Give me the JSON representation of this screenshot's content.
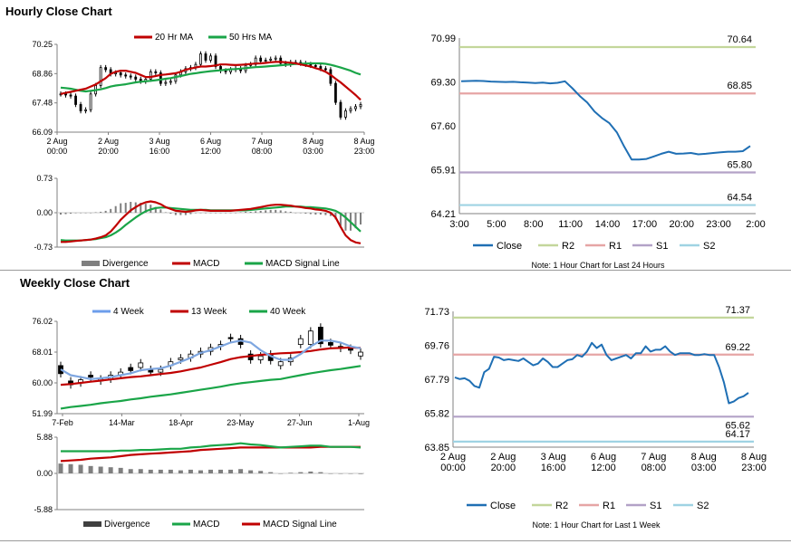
{
  "colors": {
    "red": "#c00000",
    "green": "#1aa548",
    "blue": "#2e75b6",
    "r2": "#c3d69b",
    "r1": "#e6a5a5",
    "s1": "#b3a2c7",
    "s2": "#9fd3e3",
    "close": "#1f6fb4",
    "grey": "#7f7f7f"
  },
  "titles": {
    "hourly": "Hourly Close Chart",
    "weekly": "Weekly Close Chart"
  },
  "notes": {
    "hourly": "Note: 1 Hour Chart for Last 24 Hours",
    "weekly": "Note: 1 Hour Chart for Last 1 Week"
  },
  "chart_data": [
    {
      "id": "hourly_price",
      "type": "candlestick",
      "title": "Hourly Close Chart",
      "legend": [
        "20 Hr MA",
        "50 Hrs MA"
      ],
      "y_ticks": [
        "70.25",
        "68.86",
        "67.48",
        "66.09"
      ],
      "ylim": [
        66.09,
        70.25
      ],
      "x_labels": [
        [
          "2 Aug",
          "00:00"
        ],
        [
          "2 Aug",
          "20:00"
        ],
        [
          "3 Aug",
          "16:00"
        ],
        [
          "6 Aug",
          "12:00"
        ],
        [
          "7 Aug",
          "08:00"
        ],
        [
          "8 Aug",
          "03:00"
        ],
        [
          "8 Aug",
          "23:00"
        ]
      ],
      "close": [
        67.9,
        67.85,
        67.8,
        67.4,
        67.1,
        67.15,
        67.9,
        68.3,
        69.15,
        69.05,
        68.85,
        68.9,
        68.8,
        68.75,
        68.7,
        68.6,
        68.5,
        68.6,
        68.95,
        68.9,
        68.4,
        68.45,
        68.5,
        68.8,
        68.95,
        69.1,
        69.15,
        69.3,
        69.8,
        69.5,
        69.7,
        69.2,
        69.0,
        68.95,
        69.05,
        69.1,
        69.0,
        69.25,
        69.3,
        69.6,
        69.45,
        69.5,
        69.55,
        69.6,
        69.35,
        69.3,
        69.4,
        69.4,
        69.35,
        69.3,
        69.25,
        69.2,
        69.1,
        69.05,
        68.4,
        67.5,
        66.8,
        67.1,
        67.2,
        67.3,
        67.4
      ],
      "ma20": [
        67.9,
        67.95,
        68.0,
        68.05,
        68.1,
        68.15,
        68.25,
        68.35,
        68.5,
        68.65,
        68.85,
        68.95,
        69.0,
        69.0,
        68.95,
        68.9,
        68.8,
        68.7,
        68.7,
        68.75,
        68.8,
        68.82,
        68.85,
        68.88,
        68.95,
        69.05,
        69.1,
        69.15,
        69.2,
        69.2,
        69.22,
        69.25,
        69.3,
        69.3,
        69.28,
        69.27,
        69.28,
        69.3,
        69.32,
        69.34,
        69.35,
        69.37,
        69.4,
        69.42,
        69.42,
        69.4,
        69.38,
        69.35,
        69.3,
        69.25,
        69.2,
        69.12,
        69.05,
        68.95,
        68.8,
        68.62,
        68.45,
        68.25,
        68.05,
        67.85,
        67.62
      ],
      "ma50": [
        68.2,
        68.18,
        68.15,
        68.1,
        68.05,
        68.02,
        68.05,
        68.08,
        68.12,
        68.18,
        68.25,
        68.3,
        68.33,
        68.36,
        68.4,
        68.45,
        68.48,
        68.5,
        68.52,
        68.55,
        68.58,
        68.62,
        68.65,
        68.7,
        68.75,
        68.8,
        68.85,
        68.88,
        68.92,
        68.95,
        68.98,
        69.0,
        69.02,
        69.05,
        69.07,
        69.08,
        69.1,
        69.12,
        69.15,
        69.17,
        69.18,
        69.2,
        69.22,
        69.24,
        69.26,
        69.28,
        69.3,
        69.32,
        69.33,
        69.34,
        69.35,
        69.35,
        69.35,
        69.33,
        69.28,
        69.22,
        69.15,
        69.08,
        69.0,
        68.9,
        68.82
      ]
    },
    {
      "id": "hourly_macd",
      "type": "macd",
      "legend": [
        "Divergence",
        "MACD",
        "MACD Signal Line"
      ],
      "y_ticks": [
        "0.73",
        "0.00",
        "-0.73"
      ],
      "ylim": [
        -0.73,
        0.73
      ],
      "macd": [
        -0.62,
        -0.62,
        -0.61,
        -0.6,
        -0.59,
        -0.58,
        -0.57,
        -0.55,
        -0.52,
        -0.48,
        -0.4,
        -0.28,
        -0.15,
        -0.05,
        0.05,
        0.12,
        0.18,
        0.22,
        0.24,
        0.22,
        0.18,
        0.12,
        0.08,
        0.04,
        0.03,
        0.02,
        0.03,
        0.05,
        0.06,
        0.05,
        0.04,
        0.04,
        0.04,
        0.04,
        0.04,
        0.05,
        0.06,
        0.07,
        0.08,
        0.1,
        0.12,
        0.14,
        0.16,
        0.17,
        0.17,
        0.16,
        0.15,
        0.13,
        0.12,
        0.1,
        0.09,
        0.07,
        0.06,
        0.04,
        0.0,
        -0.1,
        -0.3,
        -0.48,
        -0.58,
        -0.63,
        -0.65
      ],
      "signal": [
        -0.58,
        -0.59,
        -0.59,
        -0.59,
        -0.59,
        -0.58,
        -0.57,
        -0.56,
        -0.54,
        -0.52,
        -0.48,
        -0.42,
        -0.35,
        -0.26,
        -0.18,
        -0.1,
        -0.03,
        0.03,
        0.07,
        0.1,
        0.11,
        0.11,
        0.1,
        0.09,
        0.08,
        0.07,
        0.06,
        0.06,
        0.06,
        0.06,
        0.05,
        0.05,
        0.05,
        0.05,
        0.05,
        0.05,
        0.05,
        0.05,
        0.06,
        0.07,
        0.08,
        0.09,
        0.1,
        0.11,
        0.12,
        0.13,
        0.13,
        0.13,
        0.13,
        0.12,
        0.12,
        0.11,
        0.1,
        0.09,
        0.07,
        0.04,
        -0.02,
        -0.1,
        -0.2,
        -0.3,
        -0.4
      ],
      "divergence": [
        -0.04,
        -0.03,
        -0.02,
        -0.01,
        0.0,
        0.0,
        0.0,
        0.01,
        0.02,
        0.04,
        0.08,
        0.14,
        0.2,
        0.21,
        0.23,
        0.22,
        0.21,
        0.19,
        0.17,
        0.12,
        0.07,
        0.01,
        -0.02,
        -0.05,
        -0.05,
        -0.05,
        -0.03,
        -0.01,
        0.0,
        -0.01,
        -0.01,
        -0.01,
        -0.01,
        -0.01,
        -0.01,
        0.0,
        0.01,
        0.02,
        0.02,
        0.03,
        0.04,
        0.05,
        0.06,
        0.06,
        0.05,
        0.03,
        0.02,
        0.0,
        -0.01,
        -0.02,
        -0.03,
        -0.04,
        -0.04,
        -0.05,
        -0.07,
        -0.14,
        -0.28,
        -0.38,
        -0.38,
        -0.33,
        -0.25
      ]
    },
    {
      "id": "hourly_levels",
      "type": "line",
      "legend": [
        "Close",
        "R2",
        "R1",
        "S1",
        "S2"
      ],
      "y_ticks": [
        "70.99",
        "69.30",
        "67.60",
        "65.91",
        "64.21"
      ],
      "ylim": [
        64.21,
        70.99
      ],
      "x_labels": [
        "3:00",
        "5:00",
        "8:00",
        "11:00",
        "14:00",
        "17:00",
        "20:00",
        "23:00",
        "2:00"
      ],
      "levels": {
        "R2": 70.64,
        "R1": 68.85,
        "S1": 65.8,
        "S2": 64.54
      },
      "level_labels": {
        "R2": "70.64",
        "R1": "68.85",
        "S1": "65.80",
        "S2": "64.54"
      },
      "close": [
        69.32,
        69.33,
        69.34,
        69.33,
        69.31,
        69.3,
        69.29,
        69.3,
        69.28,
        69.27,
        69.25,
        69.27,
        69.24,
        69.26,
        69.32,
        69.05,
        68.75,
        68.5,
        68.15,
        67.9,
        67.7,
        67.35,
        66.8,
        66.3,
        66.3,
        66.32,
        66.42,
        66.52,
        66.6,
        66.52,
        66.53,
        66.55,
        66.5,
        66.52,
        66.55,
        66.58,
        66.6,
        66.6,
        66.62,
        66.82
      ]
    },
    {
      "id": "weekly_price",
      "type": "candlestick",
      "title": "Weekly Close Chart",
      "legend": [
        "4 Week",
        "13 Week",
        "40 Week"
      ],
      "y_ticks": [
        "76.02",
        "68.01",
        "60.00",
        "51.99"
      ],
      "ylim": [
        51.99,
        76.02
      ],
      "x_labels": [
        "7-Feb",
        "14-Mar",
        "18-Apr",
        "23-May",
        "27-Jun",
        "1-Aug"
      ],
      "close": [
        62.4,
        59.5,
        60.8,
        61.5,
        61.0,
        62.0,
        62.8,
        63.2,
        65.2,
        62.8,
        63.5,
        65.5,
        66.5,
        67.5,
        68.2,
        69.2,
        70.0,
        71.5,
        70.0,
        66.0,
        67.0,
        65.8,
        65.5,
        66.5,
        71.5,
        73.5,
        70.2,
        69.8,
        69.0,
        68.5,
        68.0
      ],
      "open": [
        64.5,
        60.5,
        60.0,
        62.0,
        60.5,
        61.0,
        62.0,
        64.0,
        64.0,
        63.5,
        62.8,
        64.5,
        66.0,
        66.5,
        67.5,
        68.2,
        69.5,
        71.8,
        71.5,
        67.5,
        66.0,
        67.5,
        64.5,
        65.5,
        70.0,
        70.0,
        74.5,
        70.5,
        69.5,
        69.0,
        67.0
      ],
      "ma4": [
        63.5,
        62.0,
        61.5,
        61.0,
        61.2,
        61.5,
        62.0,
        62.5,
        63.3,
        63.6,
        63.8,
        64.5,
        65.5,
        66.5,
        67.8,
        68.5,
        69.5,
        70.5,
        71.0,
        70.5,
        68.5,
        67.0,
        66.0,
        66.0,
        67.5,
        69.5,
        71.0,
        71.0,
        70.5,
        69.5,
        69.0
      ],
      "ma13": [
        59.5,
        59.7,
        60.0,
        60.3,
        60.6,
        60.9,
        61.2,
        61.5,
        61.7,
        62.0,
        62.3,
        62.6,
        63.0,
        63.5,
        64.0,
        64.7,
        65.4,
        66.2,
        66.7,
        67.0,
        67.3,
        67.5,
        67.7,
        67.8,
        68.0,
        68.3,
        68.7,
        69.0,
        69.1,
        69.2,
        69.1
      ],
      "ma40": [
        53.3,
        53.7,
        54.0,
        54.3,
        54.7,
        55.0,
        55.3,
        55.7,
        56.0,
        56.4,
        56.7,
        57.0,
        57.4,
        57.8,
        58.2,
        58.6,
        59.0,
        59.5,
        59.9,
        60.2,
        60.5,
        60.8,
        61.0,
        61.5,
        62.0,
        62.5,
        62.9,
        63.3,
        63.6,
        64.0,
        64.4
      ]
    },
    {
      "id": "weekly_macd",
      "type": "macd",
      "legend": [
        "Divergence",
        "MACD",
        "MACD Signal Line"
      ],
      "y_ticks": [
        "5.88",
        "0.00",
        "-5.88"
      ],
      "ylim": [
        -5.88,
        5.88
      ],
      "macd": [
        3.6,
        3.6,
        3.6,
        3.6,
        3.6,
        3.6,
        3.7,
        3.7,
        3.8,
        3.8,
        3.9,
        4.0,
        4.0,
        4.2,
        4.3,
        4.5,
        4.6,
        4.7,
        4.9,
        4.7,
        4.6,
        4.4,
        4.2,
        4.3,
        4.4,
        4.5,
        4.5,
        4.3,
        4.3,
        4.3,
        4.2
      ],
      "signal": [
        2.0,
        2.1,
        2.2,
        2.4,
        2.5,
        2.6,
        2.8,
        3.0,
        3.1,
        3.2,
        3.3,
        3.4,
        3.5,
        3.6,
        3.8,
        3.9,
        4.0,
        4.1,
        4.2,
        4.2,
        4.2,
        4.2,
        4.2,
        4.2,
        4.2,
        4.2,
        4.3,
        4.3,
        4.3,
        4.3,
        4.3
      ],
      "divergence": [
        1.6,
        1.5,
        1.4,
        1.2,
        1.1,
        1.0,
        0.9,
        0.7,
        0.7,
        0.6,
        0.6,
        0.6,
        0.5,
        0.6,
        0.5,
        0.6,
        0.6,
        0.6,
        0.7,
        0.5,
        0.4,
        0.2,
        0.0,
        0.1,
        0.2,
        0.3,
        0.2,
        0.0,
        0.0,
        0.0,
        -0.1
      ]
    },
    {
      "id": "weekly_levels",
      "type": "line",
      "legend": [
        "Close",
        "R2",
        "R1",
        "S1",
        "S2"
      ],
      "y_ticks": [
        "71.73",
        "69.76",
        "67.79",
        "65.82",
        "63.85"
      ],
      "ylim": [
        63.85,
        71.73
      ],
      "x_labels": [
        [
          "2 Aug",
          "00:00"
        ],
        [
          "2 Aug",
          "20:00"
        ],
        [
          "3 Aug",
          "16:00"
        ],
        [
          "6 Aug",
          "12:00"
        ],
        [
          "7 Aug",
          "08:00"
        ],
        [
          "8 Aug",
          "03:00"
        ],
        [
          "8 Aug",
          "23:00"
        ]
      ],
      "levels": {
        "R2": 71.37,
        "R1": 69.22,
        "S1": 65.62,
        "S2": 64.17
      },
      "level_labels": {
        "R2": "71.37",
        "R1": "69.22",
        "S1": "65.62",
        "S2": "64.17"
      },
      "close": [
        67.9,
        67.8,
        67.85,
        67.7,
        67.4,
        67.3,
        68.2,
        68.4,
        69.1,
        69.05,
        68.9,
        68.95,
        68.9,
        68.85,
        69.0,
        68.8,
        68.6,
        68.7,
        69.0,
        68.8,
        68.5,
        68.5,
        68.7,
        68.9,
        68.95,
        69.2,
        69.1,
        69.4,
        69.9,
        69.6,
        69.8,
        69.2,
        68.9,
        69.0,
        69.1,
        69.2,
        69.0,
        69.3,
        69.3,
        69.7,
        69.4,
        69.5,
        69.5,
        69.7,
        69.4,
        69.2,
        69.3,
        69.3,
        69.3,
        69.2,
        69.2,
        69.25,
        69.2,
        69.2,
        68.5,
        67.6,
        66.4,
        66.5,
        66.7,
        66.8,
        67.0
      ]
    }
  ]
}
